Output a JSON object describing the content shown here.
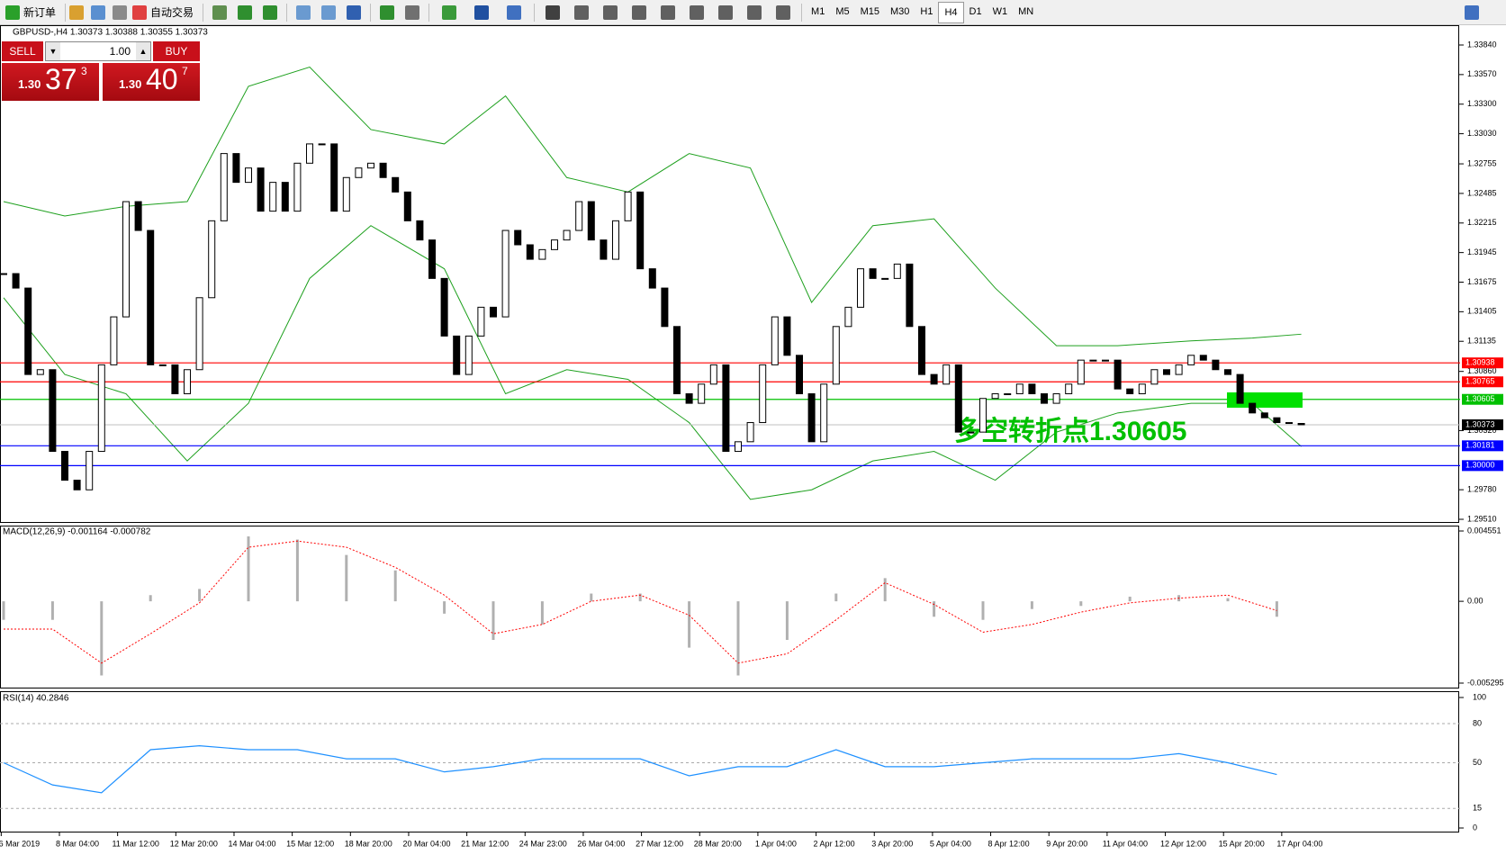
{
  "toolbar": {
    "new_order": "新订单",
    "auto_trading": "自动交易",
    "timeframes": [
      "M1",
      "M5",
      "M15",
      "M30",
      "H1",
      "H4",
      "D1",
      "W1",
      "MN"
    ]
  },
  "chart": {
    "header": "GBPUSD-,H4  1.30373 1.30388 1.30355 1.30373",
    "trade_panel": {
      "sell": "SELL",
      "lot": "1.00",
      "buy": "BUY",
      "bid_big": "1.30",
      "bid_digits": "37",
      "bid_pip": "3",
      "ask_big": "1.30",
      "ask_digits": "40",
      "ask_pip": "7"
    },
    "ylim": [
      1.2951,
      1.3384
    ],
    "yticks": [
      {
        "value": 1.3384,
        "label": "1.33840"
      },
      {
        "value": 1.3357,
        "label": "1.33570"
      },
      {
        "value": 1.333,
        "label": "1.33300"
      },
      {
        "value": 1.3303,
        "label": "1.33030"
      },
      1.32755,
      1.32485,
      1.32215,
      1.31945,
      1.31675,
      1.31405,
      1.31135,
      {
        "value": 1.3086,
        "label": "1.30860"
      },
      {
        "value": 1.3032,
        "label": "1.30320"
      },
      {
        "value": 1.2978,
        "label": "1.29780"
      },
      {
        "value": 1.2951,
        "label": "1.29510"
      }
    ],
    "closes": [
      1.31753,
      1.31621,
      1.30832,
      1.30876,
      1.3013,
      1.29867,
      1.29779,
      1.3013,
      1.3092,
      1.31358,
      1.3241,
      1.32147,
      1.3092,
      1.3092,
      1.30656,
      1.30876,
      1.31533,
      1.32235,
      1.32849,
      1.32586,
      1.32717,
      1.32323,
      1.32586,
      1.32323,
      1.32761,
      1.32937,
      1.32937,
      1.32323,
      1.3263,
      1.32717,
      1.32761,
      1.3263,
      1.32498,
      1.32235,
      1.3206,
      1.31709,
      1.31183,
      1.30832,
      1.31183,
      1.31446,
      1.31358,
      1.32147,
      1.32016,
      1.31884,
      1.31972,
      1.3206,
      1.32147,
      1.3241,
      1.3206,
      1.31884,
      1.32235,
      1.32498,
      1.31797,
      1.31621,
      1.3127,
      1.30656,
      1.30569,
      1.30744,
      1.3092,
      1.3013,
      1.30218,
      1.30393,
      1.3092,
      1.31358,
      1.31007,
      1.30656,
      1.30218,
      1.30744,
      1.3127,
      1.31446,
      1.31797,
      1.31709,
      1.31709,
      1.3184,
      1.3127,
      1.30832,
      1.30744,
      1.3092,
      1.30306,
      1.30306,
      1.30613,
      1.30656,
      1.30656,
      1.30744,
      1.30656,
      1.30569,
      1.30656,
      1.30744,
      1.30963,
      1.30963,
      1.30963,
      1.307,
      1.30656,
      1.30744,
      1.30876,
      1.30832,
      1.3092,
      1.31007,
      1.30963,
      1.30876,
      1.30832,
      1.30569,
      1.30481,
      1.30437,
      1.30393,
      1.30385,
      1.30373
    ],
    "bands": {
      "color": "#1ea01e",
      "bars": [
        0,
        5,
        10,
        15,
        20,
        25,
        30,
        36,
        41,
        46,
        51,
        56,
        61,
        66,
        71,
        76,
        81,
        86,
        91,
        97,
        102,
        106
      ],
      "upper": [
        1.3241,
        1.32279,
        1.32367,
        1.3241,
        1.33463,
        1.33638,
        1.33068,
        1.32937,
        1.33375,
        1.3263,
        1.32498,
        1.32849,
        1.32717,
        1.3149,
        1.32191,
        1.32253,
        1.31621,
        1.31095,
        1.31095,
        1.31139,
        1.31165,
        1.312
      ],
      "lower": [
        1.31533,
        1.30832,
        1.30656,
        1.30043,
        1.30569,
        1.31709,
        1.32191,
        1.31797,
        1.30656,
        1.30876,
        1.30788,
        1.30393,
        1.29692,
        1.29779,
        1.30043,
        1.3013,
        1.29867,
        1.30306,
        1.30481,
        1.30569,
        1.30569,
        1.30174
      ]
    },
    "levels": [
      {
        "value": 1.30938,
        "label": "1.30938",
        "color": "#ff0000"
      },
      {
        "value": 1.30765,
        "label": "1.30765",
        "color": "#ff0000"
      },
      {
        "value": 1.30605,
        "label": "1.30605",
        "color": "#00c000"
      },
      {
        "value": 1.30181,
        "label": "1.30181",
        "color": "#0000ff"
      },
      {
        "value": 1.3,
        "label": "1.30000",
        "color": "#0000ff"
      }
    ],
    "current": {
      "value": 1.30373,
      "label": "1.30373"
    },
    "annotation": "多空转折点1.30605",
    "macd": {
      "label": "MACD(12,26,9) -0.001164 -0.000782",
      "ylim": [
        -0.005295,
        0.004551
      ],
      "yticks": [
        0.004551,
        {
          "value": 0,
          "label": "0.00"
        },
        -0.005295
      ],
      "bars": [
        0,
        4,
        8,
        12,
        16,
        20,
        24,
        28,
        32,
        36,
        40,
        44,
        48,
        52,
        56,
        60,
        64,
        68,
        72,
        76,
        80,
        84,
        88,
        92,
        96,
        100,
        104
      ],
      "histogram": [
        -0.0012,
        -0.0012,
        -0.0048,
        0.0004,
        0.0008,
        0.0042,
        0.004,
        0.003,
        0.002,
        -0.0008,
        -0.0025,
        -0.0015,
        0.0005,
        0.0005,
        -0.003,
        -0.0048,
        -0.0025,
        0.0005,
        0.0015,
        -0.001,
        -0.0012,
        -0.0005,
        -0.0003,
        0.0003,
        0.0004,
        0.0002,
        -0.001
      ],
      "signal": [
        -0.0018,
        -0.0018,
        -0.004,
        -0.0021,
        -0.0001,
        0.0035,
        0.0039,
        0.0035,
        0.0022,
        0.0004,
        -0.0021,
        -0.0015,
        0,
        0.0004,
        -0.0009,
        -0.004,
        -0.0034,
        -0.0012,
        0.0012,
        -0.0002,
        -0.002,
        -0.0015,
        -0.0007,
        -0.0001,
        0.0002,
        0.0004,
        -0.0006
      ]
    },
    "rsi": {
      "label": "RSI(14) 40.2846",
      "ylim": [
        0,
        100
      ],
      "yticks": [
        100,
        80,
        50,
        15,
        0
      ],
      "bars": [
        0,
        4,
        8,
        12,
        16,
        20,
        24,
        28,
        32,
        36,
        40,
        44,
        48,
        52,
        56,
        60,
        64,
        68,
        72,
        76,
        80,
        84,
        88,
        92,
        96,
        100,
        104
      ],
      "values": [
        50,
        33,
        27,
        60,
        63,
        60,
        60,
        53,
        53,
        43,
        47,
        53,
        53,
        53,
        40,
        47,
        47,
        60,
        47,
        47,
        50,
        53,
        53,
        53,
        57,
        50,
        41
      ]
    },
    "dates": [
      "6 Mar 2019",
      "8 Mar 04:00",
      "11 Mar 12:00",
      "12 Mar 20:00",
      "14 Mar 04:00",
      "15 Mar 12:00",
      "18 Mar 20:00",
      "20 Mar 04:00",
      "21 Mar 12:00",
      "24 Mar 23:00",
      "26 Mar 04:00",
      "27 Mar 12:00",
      "28 Mar 20:00",
      "1 Apr 04:00",
      "2 Apr 12:00",
      "3 Apr 20:00",
      "5 Apr 04:00",
      "8 Apr 12:00",
      "9 Apr 20:00",
      "11 Apr 04:00",
      "12 Apr 12:00",
      "15 Apr 20:00",
      "17 Apr 04:00"
    ]
  }
}
